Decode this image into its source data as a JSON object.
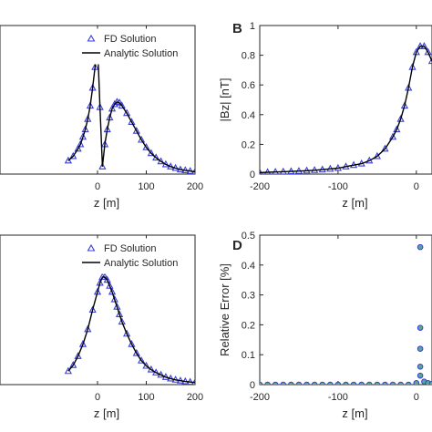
{
  "panels": {
    "A": {
      "letter": ""
    },
    "B": {
      "letter": "B"
    },
    "C": {
      "letter": ""
    },
    "D": {
      "letter": "D"
    }
  },
  "legend": {
    "fd_label": "FD Solution",
    "analytic_label": "Analytic Solution"
  },
  "colors": {
    "fd_marker": "#3a3fd6",
    "analytic_line": "#000000",
    "scatter_marker": "#3a3fd6",
    "scatter_fill": "#5aa59a",
    "axis": "#262626"
  },
  "chart_data": [
    {
      "id": "A",
      "type": "line",
      "title": "",
      "xlabel": "z [m]",
      "ylabel": "",
      "xlim": [
        -200,
        200
      ],
      "ylim": [
        0,
        1
      ],
      "xticks": [
        0,
        100,
        200
      ],
      "xtick_labels": [
        "0",
        "100",
        "200"
      ],
      "yticks": [],
      "legend_position": "top-right",
      "series": [
        {
          "name": "FD Solution",
          "marker": "triangle",
          "x": [
            -60,
            -50,
            -40,
            -35,
            -30,
            -25,
            -20,
            -15,
            -10,
            -5,
            0,
            5,
            10,
            15,
            20,
            25,
            30,
            35,
            40,
            45,
            50,
            60,
            70,
            80,
            90,
            100,
            110,
            120,
            130,
            140,
            150,
            160,
            170,
            180,
            190,
            200
          ],
          "y": [
            0.09,
            0.12,
            0.17,
            0.2,
            0.25,
            0.3,
            0.37,
            0.46,
            0.58,
            0.72,
            0.88,
            0.45,
            0.05,
            0.2,
            0.3,
            0.38,
            0.44,
            0.47,
            0.485,
            0.48,
            0.46,
            0.41,
            0.35,
            0.29,
            0.23,
            0.18,
            0.14,
            0.11,
            0.085,
            0.065,
            0.05,
            0.04,
            0.03,
            0.025,
            0.02,
            0.015
          ]
        },
        {
          "name": "Analytic Solution",
          "marker": "none",
          "x": [
            -60,
            -50,
            -40,
            -35,
            -30,
            -25,
            -20,
            -15,
            -10,
            -5,
            0,
            5,
            10,
            15,
            20,
            25,
            30,
            35,
            40,
            45,
            50,
            60,
            70,
            80,
            90,
            100,
            110,
            120,
            130,
            140,
            150,
            160,
            170,
            180,
            190,
            200
          ],
          "y": [
            0.09,
            0.12,
            0.17,
            0.2,
            0.25,
            0.3,
            0.37,
            0.46,
            0.58,
            0.72,
            0.88,
            0.45,
            0.05,
            0.2,
            0.3,
            0.38,
            0.44,
            0.47,
            0.485,
            0.48,
            0.46,
            0.41,
            0.35,
            0.29,
            0.23,
            0.18,
            0.14,
            0.11,
            0.085,
            0.065,
            0.05,
            0.04,
            0.03,
            0.025,
            0.02,
            0.015
          ]
        }
      ]
    },
    {
      "id": "B",
      "type": "line",
      "title": "",
      "xlabel": "z [m]",
      "ylabel": "|Bz| [nT]",
      "xlim": [
        -200,
        20
      ],
      "ylim": [
        0,
        1
      ],
      "xticks": [
        -200,
        -100,
        0
      ],
      "xtick_labels": [
        "-200",
        "-100",
        "0"
      ],
      "yticks": [
        0,
        0.2,
        0.4,
        0.6,
        0.8,
        1
      ],
      "ytick_labels": [
        "0",
        "0.2",
        "0.4",
        "0.6",
        "0.8",
        "1"
      ],
      "series": [
        {
          "name": "FD Solution",
          "marker": "triangle",
          "x": [
            -200,
            -190,
            -180,
            -170,
            -160,
            -150,
            -140,
            -130,
            -120,
            -110,
            -100,
            -90,
            -80,
            -70,
            -60,
            -50,
            -40,
            -30,
            -25,
            -20,
            -15,
            -10,
            -5,
            0,
            5,
            10,
            15,
            20
          ],
          "y": [
            0.01,
            0.012,
            0.014,
            0.016,
            0.018,
            0.02,
            0.023,
            0.026,
            0.03,
            0.035,
            0.04,
            0.05,
            0.06,
            0.07,
            0.09,
            0.12,
            0.17,
            0.25,
            0.3,
            0.37,
            0.46,
            0.58,
            0.72,
            0.82,
            0.86,
            0.86,
            0.82,
            0.76
          ]
        },
        {
          "name": "Analytic Solution",
          "marker": "none",
          "x": [
            -200,
            -190,
            -180,
            -170,
            -160,
            -150,
            -140,
            -130,
            -120,
            -110,
            -100,
            -90,
            -80,
            -70,
            -60,
            -50,
            -40,
            -30,
            -25,
            -20,
            -15,
            -10,
            -5,
            0,
            5,
            10,
            15,
            20
          ],
          "y": [
            0.01,
            0.012,
            0.014,
            0.016,
            0.018,
            0.02,
            0.023,
            0.026,
            0.03,
            0.035,
            0.04,
            0.05,
            0.06,
            0.07,
            0.09,
            0.12,
            0.17,
            0.25,
            0.3,
            0.37,
            0.46,
            0.58,
            0.72,
            0.82,
            0.86,
            0.86,
            0.82,
            0.76
          ]
        }
      ]
    },
    {
      "id": "C",
      "type": "line",
      "title": "",
      "xlabel": "z [m]",
      "ylabel": "",
      "xlim": [
        -200,
        200
      ],
      "ylim": [
        0,
        1
      ],
      "xticks": [
        0,
        100,
        200
      ],
      "xtick_labels": [
        "0",
        "100",
        "200"
      ],
      "yticks": [],
      "legend_position": "top-right",
      "series": [
        {
          "name": "FD Solution",
          "marker": "triangle",
          "x": [
            -60,
            -50,
            -40,
            -30,
            -20,
            -10,
            0,
            5,
            10,
            15,
            20,
            25,
            30,
            35,
            40,
            45,
            50,
            60,
            70,
            80,
            90,
            100,
            110,
            120,
            130,
            140,
            150,
            160,
            170,
            180,
            190,
            200
          ],
          "y": [
            0.09,
            0.13,
            0.19,
            0.27,
            0.37,
            0.5,
            0.62,
            0.68,
            0.72,
            0.72,
            0.7,
            0.66,
            0.62,
            0.57,
            0.52,
            0.47,
            0.42,
            0.34,
            0.27,
            0.21,
            0.16,
            0.125,
            0.1,
            0.08,
            0.065,
            0.05,
            0.04,
            0.032,
            0.026,
            0.021,
            0.017,
            0.014
          ]
        },
        {
          "name": "Analytic Solution",
          "marker": "none",
          "x": [
            -60,
            -50,
            -40,
            -30,
            -20,
            -10,
            0,
            5,
            10,
            15,
            20,
            25,
            30,
            35,
            40,
            45,
            50,
            60,
            70,
            80,
            90,
            100,
            110,
            120,
            130,
            140,
            150,
            160,
            170,
            180,
            190,
            200
          ],
          "y": [
            0.09,
            0.13,
            0.19,
            0.27,
            0.37,
            0.5,
            0.62,
            0.68,
            0.72,
            0.72,
            0.7,
            0.66,
            0.62,
            0.57,
            0.52,
            0.47,
            0.42,
            0.34,
            0.27,
            0.21,
            0.16,
            0.125,
            0.1,
            0.08,
            0.065,
            0.05,
            0.04,
            0.032,
            0.026,
            0.021,
            0.017,
            0.014
          ]
        }
      ]
    },
    {
      "id": "D",
      "type": "scatter",
      "title": "",
      "xlabel": "z [m]",
      "ylabel": "Relative Error [%]",
      "xlim": [
        -200,
        20
      ],
      "ylim": [
        0,
        0.5
      ],
      "xticks": [
        -200,
        -100,
        0
      ],
      "xtick_labels": [
        "-200",
        "-100",
        "0"
      ],
      "yticks": [
        0,
        0.1,
        0.2,
        0.3,
        0.4,
        0.5
      ],
      "ytick_labels": [
        "0",
        "0.1",
        "0.2",
        "0.3",
        "0.4",
        "0.5"
      ],
      "series": [
        {
          "name": "",
          "marker": "circle",
          "x": [
            -200,
            -190,
            -180,
            -170,
            -160,
            -150,
            -140,
            -130,
            -120,
            -110,
            -100,
            -90,
            -80,
            -70,
            -60,
            -50,
            -40,
            -30,
            -20,
            -10,
            0,
            5,
            5,
            5,
            5,
            5,
            10,
            15,
            20
          ],
          "y": [
            0,
            0,
            0,
            0,
            0,
            0,
            0,
            0,
            0,
            0,
            0,
            0,
            0,
            0,
            0,
            0,
            0,
            0,
            0,
            0,
            0.005,
            0.46,
            0.19,
            0.12,
            0.06,
            0.03,
            0.01,
            0.005,
            0.003
          ]
        }
      ]
    }
  ]
}
